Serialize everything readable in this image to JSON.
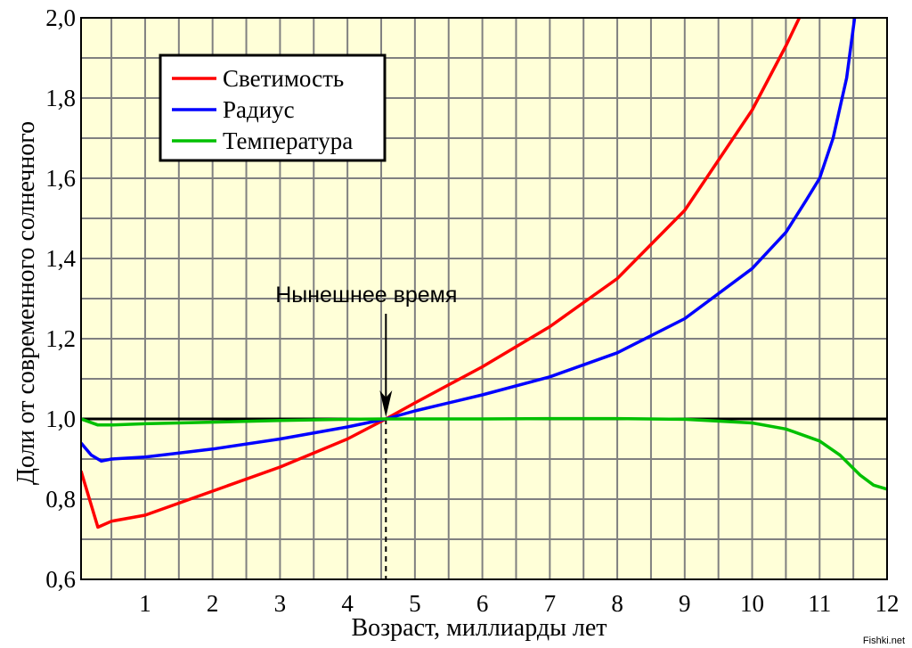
{
  "chart_data": {
    "type": "line",
    "title": "",
    "xlabel": "Возраст, миллиарды лет",
    "ylabel": "Доли от современного солнечного",
    "xlim": [
      0.05,
      12
    ],
    "ylim": [
      0.6,
      2.0
    ],
    "grid": true,
    "legend": "top-left",
    "x_ticks": [
      "1",
      "2",
      "3",
      "4",
      "5",
      "6",
      "7",
      "8",
      "9",
      "10",
      "11",
      "12"
    ],
    "y_ticks": [
      "0,6",
      "0,8",
      "1,0",
      "1,2",
      "1,4",
      "1,6",
      "1,8",
      "2,0"
    ],
    "reference_line": 1.0,
    "annotation": {
      "text": "Нынешнее время",
      "x": 4.57
    },
    "series": [
      {
        "name": "Светимость",
        "color": "#ff0000",
        "points": [
          [
            0.05,
            0.87
          ],
          [
            0.3,
            0.73
          ],
          [
            0.5,
            0.745
          ],
          [
            1,
            0.76
          ],
          [
            2,
            0.82
          ],
          [
            3,
            0.88
          ],
          [
            4,
            0.95
          ],
          [
            4.57,
            1.0
          ],
          [
            5,
            1.04
          ],
          [
            6,
            1.13
          ],
          [
            7,
            1.23
          ],
          [
            8,
            1.35
          ],
          [
            9,
            1.52
          ],
          [
            10,
            1.77
          ],
          [
            10.5,
            1.93
          ],
          [
            10.7,
            2.0
          ]
        ]
      },
      {
        "name": "Радиус",
        "color": "#0000ff",
        "points": [
          [
            0.05,
            0.94
          ],
          [
            0.2,
            0.91
          ],
          [
            0.35,
            0.895
          ],
          [
            0.5,
            0.9
          ],
          [
            1,
            0.905
          ],
          [
            2,
            0.925
          ],
          [
            3,
            0.95
          ],
          [
            4,
            0.98
          ],
          [
            4.57,
            1.0
          ],
          [
            5,
            1.02
          ],
          [
            6,
            1.06
          ],
          [
            7,
            1.105
          ],
          [
            8,
            1.165
          ],
          [
            9,
            1.25
          ],
          [
            10,
            1.375
          ],
          [
            10.5,
            1.465
          ],
          [
            10.8,
            1.545
          ],
          [
            11,
            1.6
          ],
          [
            11.2,
            1.7
          ],
          [
            11.4,
            1.85
          ],
          [
            11.52,
            2.0
          ]
        ]
      },
      {
        "name": "Температура",
        "color": "#00c000",
        "points": [
          [
            0.05,
            1.0
          ],
          [
            0.3,
            0.985
          ],
          [
            0.5,
            0.985
          ],
          [
            1,
            0.988
          ],
          [
            2,
            0.992
          ],
          [
            3,
            0.996
          ],
          [
            4,
            0.999
          ],
          [
            4.57,
            1.0
          ],
          [
            5,
            1.0
          ],
          [
            6,
            1.0
          ],
          [
            7,
            1.001
          ],
          [
            8,
            1.001
          ],
          [
            9,
            0.999
          ],
          [
            10,
            0.99
          ],
          [
            10.5,
            0.975
          ],
          [
            11,
            0.945
          ],
          [
            11.3,
            0.91
          ],
          [
            11.6,
            0.86
          ],
          [
            11.8,
            0.835
          ],
          [
            12,
            0.825
          ]
        ]
      }
    ]
  },
  "watermark": "Fishki.net"
}
